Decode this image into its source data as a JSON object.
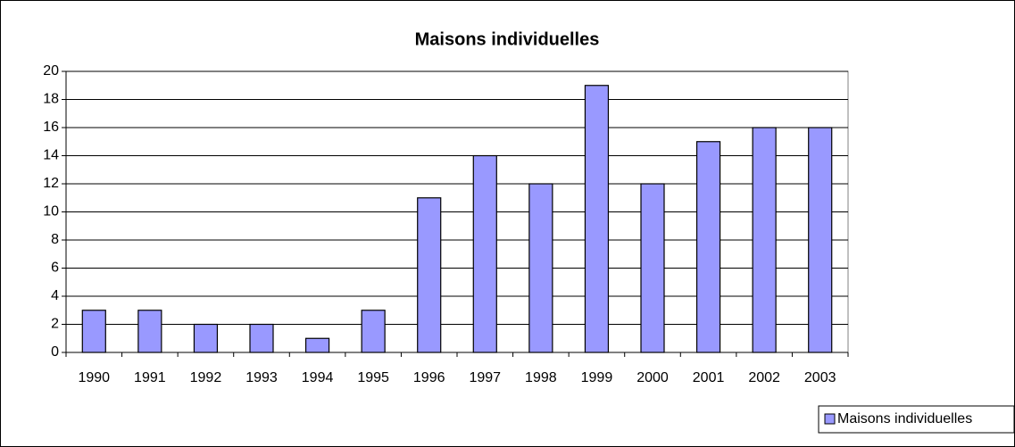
{
  "chart_data": {
    "type": "bar",
    "title": "Maisons individuelles",
    "categories": [
      "1990",
      "1991",
      "1992",
      "1993",
      "1994",
      "1995",
      "1996",
      "1997",
      "1998",
      "1999",
      "2000",
      "2001",
      "2002",
      "2003"
    ],
    "series": [
      {
        "name": "Maisons individuelles",
        "color": "#9999ff",
        "values": [
          3,
          3,
          2,
          2,
          1,
          3,
          11,
          14,
          12,
          19,
          12,
          15,
          16,
          16
        ]
      }
    ],
    "ylim": [
      0,
      20
    ],
    "yticks": [
      0,
      2,
      4,
      6,
      8,
      10,
      12,
      14,
      16,
      18,
      20
    ],
    "grid": true,
    "legend": "bottom-right"
  }
}
